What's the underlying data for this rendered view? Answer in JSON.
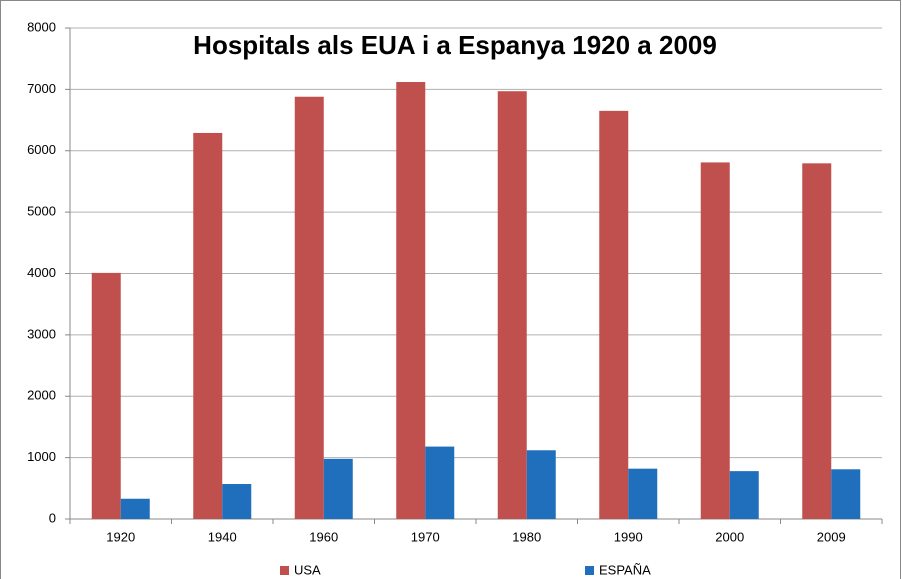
{
  "chart_data": {
    "type": "bar",
    "title": "Hospitals als EUA i a Espanya 1920 a 2009",
    "categories": [
      "1920",
      "1940",
      "1960",
      "1970",
      "1980",
      "1990",
      "2000",
      "2009"
    ],
    "series": [
      {
        "name": "USA",
        "color": "#c0504d",
        "values": [
          4010,
          6290,
          6880,
          7120,
          6970,
          6650,
          5810,
          5795
        ]
      },
      {
        "name": "ESPAÑA",
        "color": "#1f6fbd",
        "values": [
          330,
          570,
          980,
          1180,
          1120,
          820,
          780,
          810
        ]
      }
    ],
    "ylim": [
      0,
      8000
    ],
    "yticks": [
      0,
      1000,
      2000,
      3000,
      4000,
      5000,
      6000,
      7000,
      8000
    ],
    "grid": true,
    "legend": "bottom"
  }
}
